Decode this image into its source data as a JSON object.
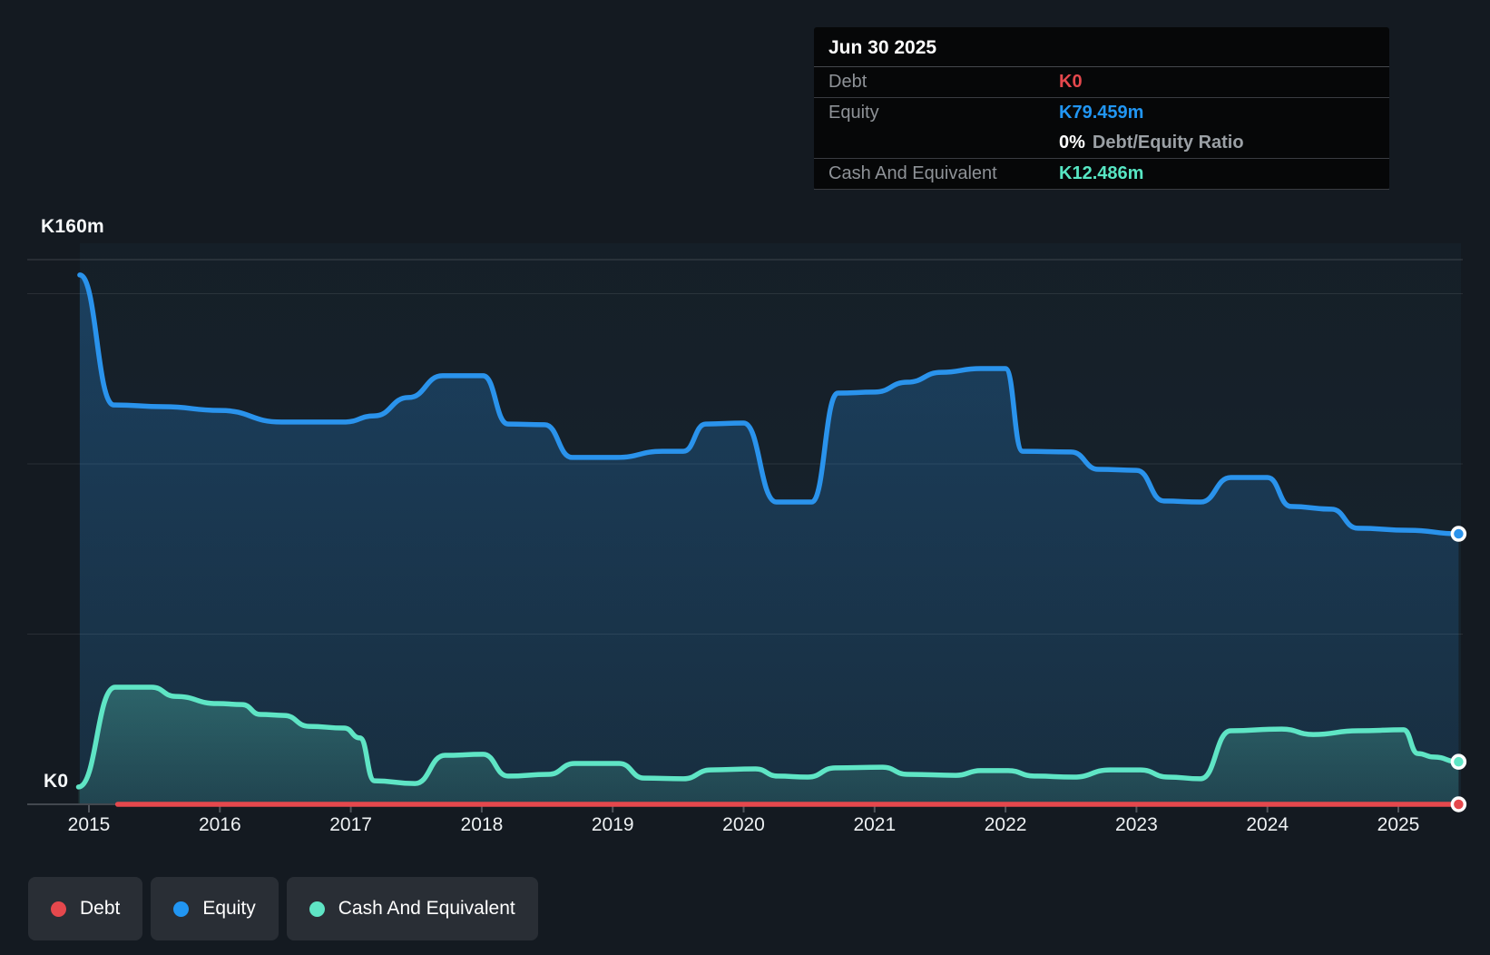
{
  "tooltip": {
    "date": "Jun 30 2025",
    "debt": {
      "label": "Debt",
      "value": "K0",
      "color": "#e5484d"
    },
    "equity": {
      "label": "Equity",
      "value": "K79.459m",
      "color": "#2196f3"
    },
    "ratio": {
      "pct": "0%",
      "text": "Debt/Equity Ratio"
    },
    "cash": {
      "label": "Cash And Equivalent",
      "value": "K12.486m",
      "color": "#57e6c3"
    }
  },
  "axis": {
    "y_max_label": "K160m",
    "y_zero_label": "K0"
  },
  "legend": [
    {
      "label": "Debt",
      "color": "#e5484d"
    },
    {
      "label": "Equity",
      "color": "#2196f3"
    },
    {
      "label": "Cash And Equivalent",
      "color": "#5fe5c5"
    }
  ],
  "chart_data": {
    "type": "area",
    "x_ticks": [
      2015,
      2016,
      2017,
      2018,
      2019,
      2020,
      2021,
      2022,
      2023,
      2024,
      2025
    ],
    "x_range": [
      2014.9,
      2025.48
    ],
    "ylim": [
      0,
      160
    ],
    "y_unit": "K m (millions)",
    "y_gridlines_m": [
      160,
      150,
      100,
      50
    ],
    "grid": true,
    "legend_position": "bottom-left",
    "series": [
      {
        "name": "Debt",
        "color": "#e5484d",
        "fill": false,
        "end_dot": true,
        "points": [
          [
            2015.22,
            0
          ],
          [
            2025.46,
            0
          ]
        ]
      },
      {
        "name": "Equity",
        "color": "#2a93ec",
        "fill": true,
        "end_dot": true,
        "points": [
          [
            2014.93,
            155.5
          ],
          [
            2015.19,
            117.3
          ],
          [
            2015.57,
            116.8
          ],
          [
            2016.0,
            115.7
          ],
          [
            2016.47,
            112.3
          ],
          [
            2016.95,
            112.3
          ],
          [
            2017.18,
            114.1
          ],
          [
            2017.44,
            119.5
          ],
          [
            2017.7,
            125.9
          ],
          [
            2018.01,
            125.9
          ],
          [
            2018.2,
            111.7
          ],
          [
            2018.48,
            111.5
          ],
          [
            2018.69,
            101.9
          ],
          [
            2019.03,
            101.9
          ],
          [
            2019.38,
            103.7
          ],
          [
            2019.54,
            103.7
          ],
          [
            2019.71,
            111.7
          ],
          [
            2020.0,
            112.0
          ],
          [
            2020.25,
            88.8
          ],
          [
            2020.52,
            88.8
          ],
          [
            2020.72,
            120.8
          ],
          [
            2021.0,
            121.1
          ],
          [
            2021.25,
            124.0
          ],
          [
            2021.51,
            126.9
          ],
          [
            2021.81,
            128.0
          ],
          [
            2022.0,
            128.0
          ],
          [
            2022.13,
            103.7
          ],
          [
            2022.5,
            103.5
          ],
          [
            2022.71,
            98.4
          ],
          [
            2023.0,
            98.1
          ],
          [
            2023.21,
            89.1
          ],
          [
            2023.49,
            88.8
          ],
          [
            2023.72,
            96.0
          ],
          [
            2024.0,
            96.0
          ],
          [
            2024.18,
            87.5
          ],
          [
            2024.49,
            86.7
          ],
          [
            2024.69,
            81.1
          ],
          [
            2025.08,
            80.5
          ],
          [
            2025.46,
            79.459
          ]
        ]
      },
      {
        "name": "Cash And Equivalent",
        "color": "#5fe5c5",
        "fill": true,
        "end_dot": true,
        "points": [
          [
            2014.92,
            5.1
          ],
          [
            2015.2,
            34.4
          ],
          [
            2015.48,
            34.4
          ],
          [
            2015.66,
            31.7
          ],
          [
            2015.98,
            29.6
          ],
          [
            2016.17,
            29.3
          ],
          [
            2016.31,
            26.4
          ],
          [
            2016.49,
            26.1
          ],
          [
            2016.68,
            22.9
          ],
          [
            2016.95,
            22.4
          ],
          [
            2017.07,
            19.5
          ],
          [
            2017.18,
            6.9
          ],
          [
            2017.49,
            6.1
          ],
          [
            2017.72,
            14.4
          ],
          [
            2018.01,
            14.7
          ],
          [
            2018.2,
            8.3
          ],
          [
            2018.51,
            8.8
          ],
          [
            2018.71,
            12.0
          ],
          [
            2019.05,
            12.0
          ],
          [
            2019.24,
            7.7
          ],
          [
            2019.54,
            7.5
          ],
          [
            2019.75,
            10.1
          ],
          [
            2020.09,
            10.4
          ],
          [
            2020.26,
            8.3
          ],
          [
            2020.49,
            8.0
          ],
          [
            2020.7,
            10.7
          ],
          [
            2021.06,
            10.9
          ],
          [
            2021.25,
            8.8
          ],
          [
            2021.62,
            8.5
          ],
          [
            2021.81,
            9.9
          ],
          [
            2022.02,
            9.9
          ],
          [
            2022.22,
            8.3
          ],
          [
            2022.52,
            8.0
          ],
          [
            2022.8,
            10.1
          ],
          [
            2023.03,
            10.1
          ],
          [
            2023.24,
            8.0
          ],
          [
            2023.49,
            7.5
          ],
          [
            2023.72,
            21.6
          ],
          [
            2024.11,
            22.1
          ],
          [
            2024.35,
            20.5
          ],
          [
            2024.69,
            21.6
          ],
          [
            2025.04,
            21.9
          ],
          [
            2025.15,
            14.9
          ],
          [
            2025.27,
            13.9
          ],
          [
            2025.46,
            12.486
          ]
        ]
      }
    ]
  }
}
